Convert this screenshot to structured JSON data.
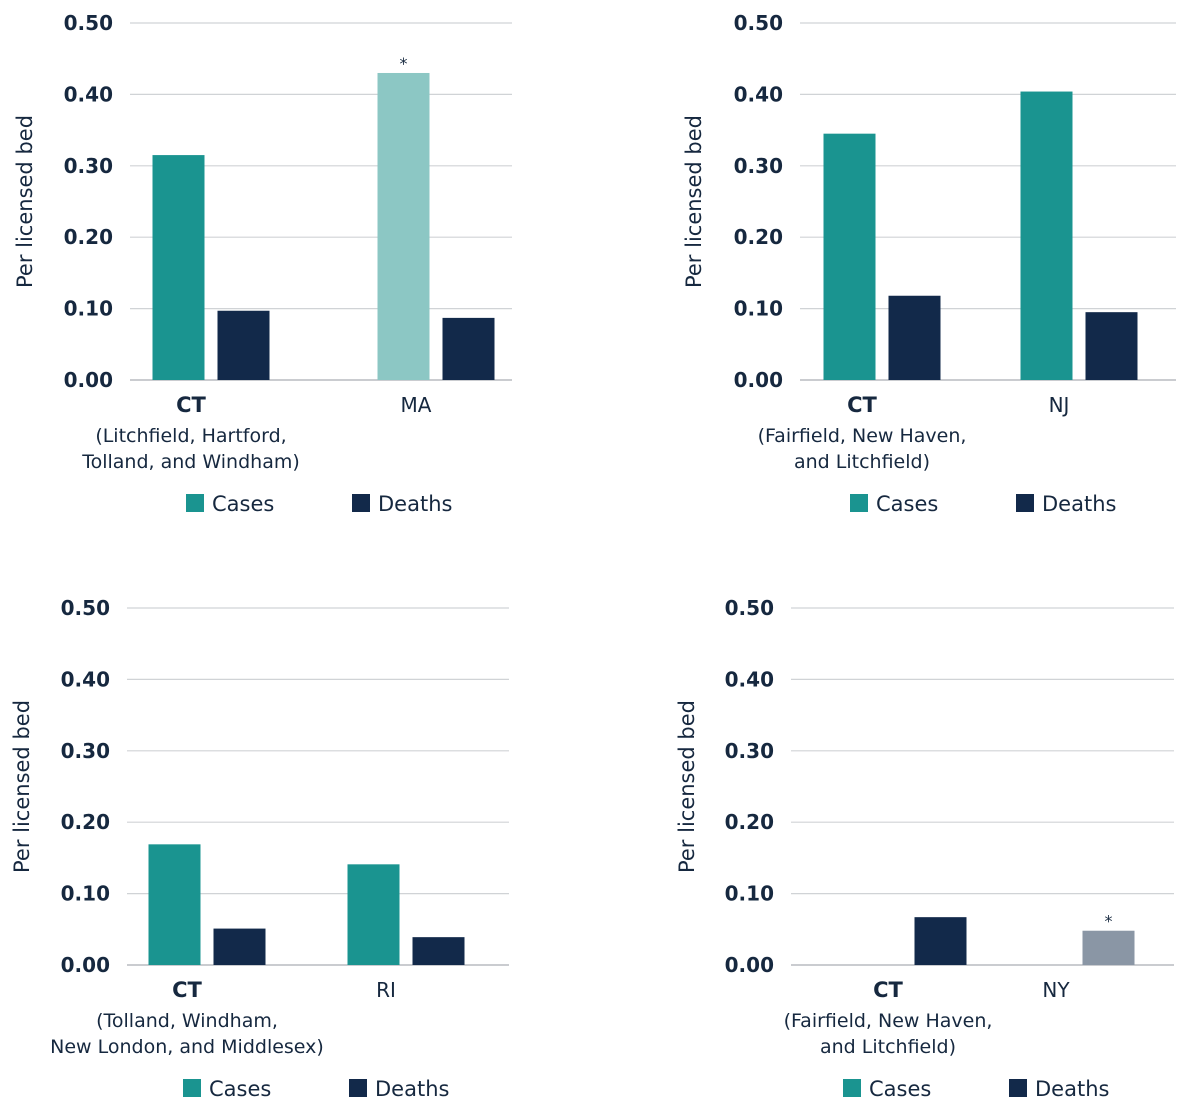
{
  "colors": {
    "cases": "#1a9490",
    "deaths": "#12294a",
    "cases_light": "#8cc7c4",
    "deaths_light": "#8a96a5"
  },
  "chart_data": [
    {
      "type": "bar",
      "ylabel": "Per licensed bed",
      "ylim": [
        0,
        0.5
      ],
      "yticks": [
        "0.00",
        "0.10",
        "0.20",
        "0.30",
        "0.40",
        "0.50"
      ],
      "grid": true,
      "legend_position": "bottom",
      "legend": [
        "Cases",
        "Deaths"
      ],
      "categories": [
        {
          "label": "CT",
          "bold": true,
          "subtitle": [
            "(Litchfield, Hartford,",
            "Tolland, and Windham)"
          ]
        },
        {
          "label": "MA",
          "bold": false,
          "subtitle": []
        }
      ],
      "series": [
        {
          "name": "Cases",
          "values": [
            0.315,
            0.43
          ],
          "light": [
            false,
            true
          ],
          "marks": [
            "",
            "*"
          ]
        },
        {
          "name": "Deaths",
          "values": [
            0.097,
            0.087
          ],
          "light": [
            false,
            false
          ],
          "marks": [
            "",
            ""
          ]
        }
      ]
    },
    {
      "type": "bar",
      "ylabel": "Per licensed bed",
      "ylim": [
        0,
        0.5
      ],
      "yticks": [
        "0.00",
        "0.10",
        "0.20",
        "0.30",
        "0.40",
        "0.50"
      ],
      "grid": true,
      "legend_position": "bottom",
      "legend": [
        "Cases",
        "Deaths"
      ],
      "categories": [
        {
          "label": "CT",
          "bold": true,
          "subtitle": [
            "(Fairfield, New Haven,",
            "and Litchfield)"
          ]
        },
        {
          "label": "NJ",
          "bold": false,
          "subtitle": []
        }
      ],
      "series": [
        {
          "name": "Cases",
          "values": [
            0.345,
            0.404
          ],
          "light": [
            false,
            false
          ],
          "marks": [
            "",
            ""
          ]
        },
        {
          "name": "Deaths",
          "values": [
            0.118,
            0.095
          ],
          "light": [
            false,
            false
          ],
          "marks": [
            "",
            ""
          ]
        }
      ]
    },
    {
      "type": "bar",
      "ylabel": "Per licensed bed",
      "ylim": [
        0,
        0.5
      ],
      "yticks": [
        "0.00",
        "0.10",
        "0.20",
        "0.30",
        "0.40",
        "0.50"
      ],
      "grid": true,
      "legend_position": "bottom",
      "legend": [
        "Cases",
        "Deaths"
      ],
      "categories": [
        {
          "label": "CT",
          "bold": true,
          "subtitle": [
            "(Tolland, Windham,",
            "New London, and Middlesex)"
          ]
        },
        {
          "label": "RI",
          "bold": false,
          "subtitle": []
        }
      ],
      "series": [
        {
          "name": "Cases",
          "values": [
            0.169,
            0.141
          ],
          "light": [
            false,
            false
          ],
          "marks": [
            "",
            ""
          ]
        },
        {
          "name": "Deaths",
          "values": [
            0.051,
            0.039
          ],
          "light": [
            false,
            false
          ],
          "marks": [
            "",
            ""
          ]
        }
      ]
    },
    {
      "type": "bar",
      "ylabel": "Per licensed bed",
      "ylim": [
        0,
        0.5
      ],
      "yticks": [
        "0.00",
        "0.10",
        "0.20",
        "0.30",
        "0.40",
        "0.50"
      ],
      "grid": true,
      "legend_position": "bottom",
      "legend": [
        "Cases",
        "Deaths"
      ],
      "categories": [
        {
          "label": "CT",
          "bold": true,
          "subtitle": [
            "(Fairfield, New Haven,",
            "and Litchfield)"
          ]
        },
        {
          "label": "NY",
          "bold": false,
          "subtitle": []
        }
      ],
      "series": [
        {
          "name": "Cases",
          "values": [
            0,
            0
          ],
          "light": [
            false,
            false
          ],
          "marks": [
            "",
            ""
          ]
        },
        {
          "name": "Deaths",
          "values": [
            0.067,
            0.048
          ],
          "light": [
            false,
            true
          ],
          "marks": [
            "",
            "*"
          ]
        }
      ]
    }
  ]
}
